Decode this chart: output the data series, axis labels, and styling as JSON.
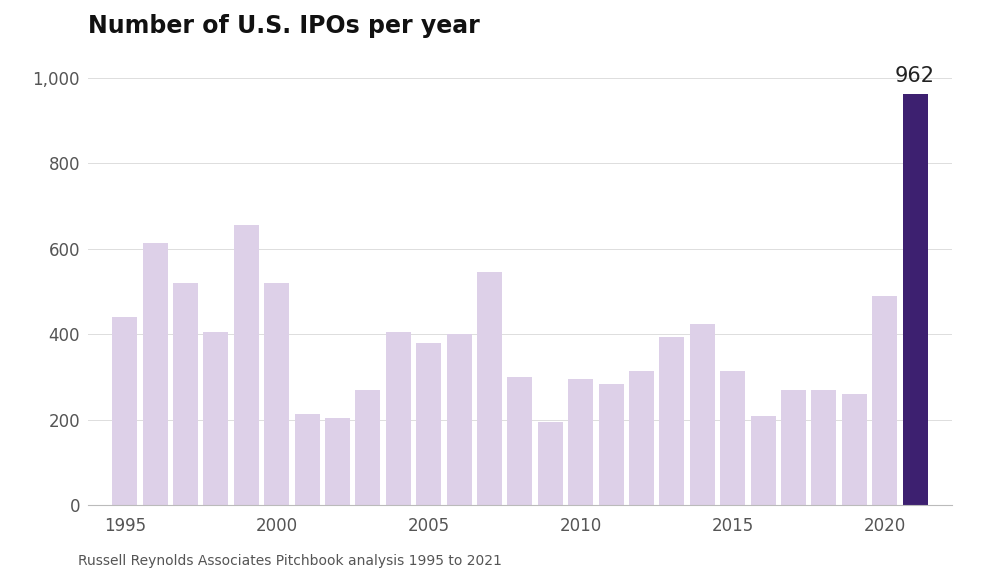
{
  "title": "Number of U.S. IPOs per year",
  "footnote": "Russell Reynolds Associates Pitchbook analysis 1995 to 2021",
  "years": [
    1995,
    1996,
    1997,
    1998,
    1999,
    2000,
    2001,
    2002,
    2003,
    2004,
    2005,
    2006,
    2007,
    2008,
    2009,
    2010,
    2011,
    2012,
    2013,
    2014,
    2015,
    2016,
    2017,
    2018,
    2019,
    2020,
    2021
  ],
  "values": [
    440,
    615,
    520,
    405,
    655,
    520,
    215,
    205,
    270,
    405,
    380,
    400,
    545,
    300,
    195,
    295,
    285,
    315,
    395,
    425,
    315,
    210,
    270,
    270,
    260,
    490,
    962
  ],
  "bar_colors_default": "#ddd0e8",
  "bar_color_highlight": "#3d2070",
  "highlight_year": 2021,
  "highlight_label": "962",
  "ylim": [
    0,
    1060
  ],
  "yticks": [
    0,
    200,
    400,
    600,
    800,
    1000
  ],
  "ytick_labels": [
    "0",
    "200",
    "400",
    "600",
    "800",
    "1,000"
  ],
  "xticks": [
    1995,
    2000,
    2005,
    2010,
    2015,
    2020
  ],
  "background_color": "#ffffff",
  "title_fontsize": 17,
  "footnote_fontsize": 10,
  "annotation_fontsize": 15,
  "bar_width": 0.82
}
